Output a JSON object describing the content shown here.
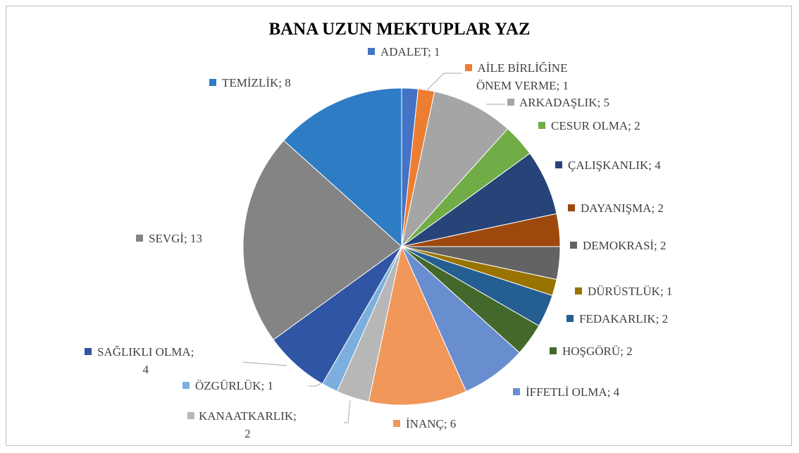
{
  "chart_data": {
    "type": "pie",
    "title": "BANA UZUN MEKTUPLAR YAZ",
    "values": [
      1,
      1,
      5,
      2,
      4,
      2,
      2,
      1,
      2,
      2,
      4,
      6,
      2,
      1,
      4,
      13,
      8
    ],
    "value_labels": [
      "ADALET; 1",
      "AİLE BİRLİĞİNE\nÖNEM VERME; 1",
      "ARKADAŞLIK; 5",
      "CESUR OLMA; 2",
      "ÇALIŞKANLIK; 4",
      "DAYANIŞMA; 2",
      "DEMOKRASİ; 2",
      "DÜRÜSTLÜK; 1",
      "FEDAKARLIK; 2",
      "HOŞGÖRÜ; 2",
      "İFFETLİ OLMA; 4",
      "İNANÇ; 6",
      "KANAATKARLIK;\n2",
      "ÖZGÜRLÜK; 1",
      "SAĞLIKLI OLMA;\n4",
      "SEVGİ; 13",
      "TEMİZLİK; 8"
    ],
    "colors": [
      "#4472c4",
      "#ed7d31",
      "#a5a5a5",
      "#70ad47",
      "#264478",
      "#9e480e",
      "#636363",
      "#997300",
      "#255e91",
      "#43682b",
      "#698ed0",
      "#f1975a",
      "#b7b7b7",
      "#7cafdd",
      "#2f55a4",
      "#848484",
      "#2e7cc4"
    ]
  }
}
